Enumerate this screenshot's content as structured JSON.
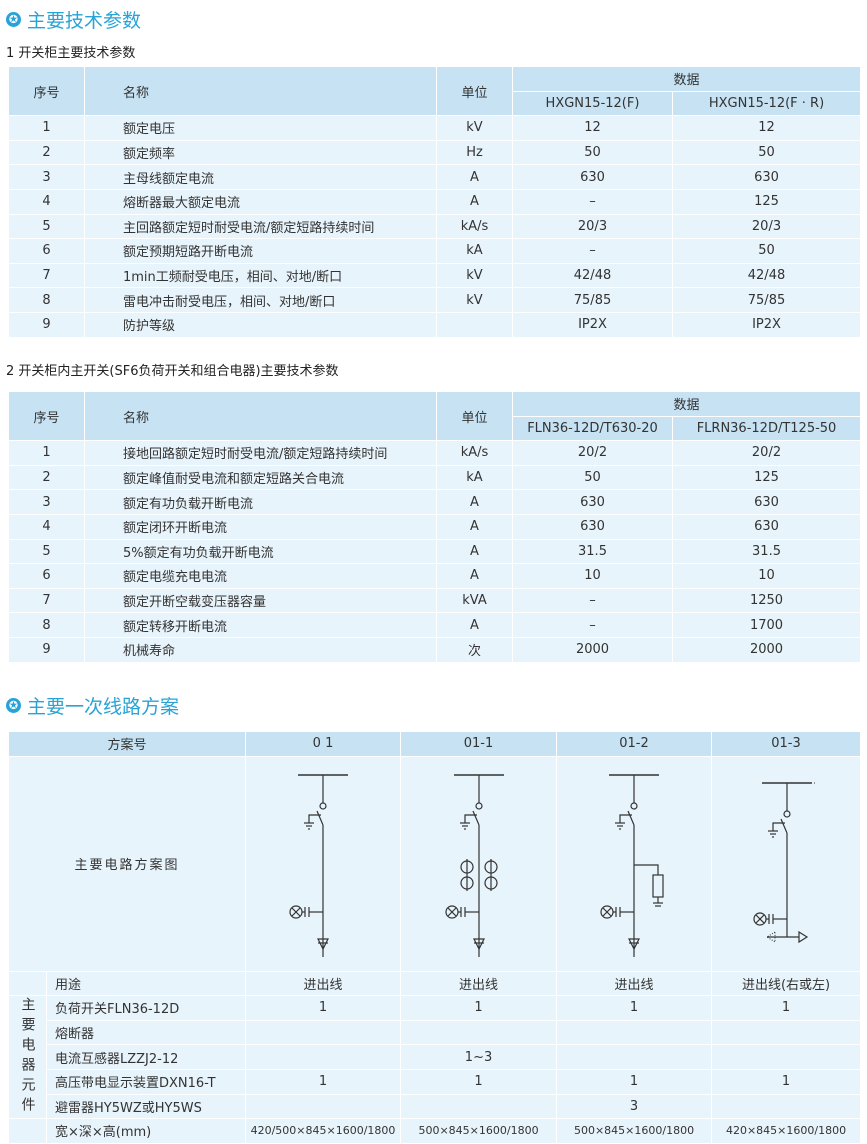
{
  "section1": {
    "title": "主要技术参数",
    "icon": "star-icon"
  },
  "table1": {
    "caption": "1 开关柜主要技术参数",
    "headers": {
      "no": "序号",
      "name": "名称",
      "unit": "单位",
      "data": "数据",
      "col1": "HXGN15-12(F)",
      "col2": "HXGN15-12(F · R)"
    },
    "rows": [
      [
        "1",
        "额定电压",
        "kV",
        "12",
        "12"
      ],
      [
        "2",
        "额定频率",
        "Hz",
        "50",
        "50"
      ],
      [
        "3",
        "主母线额定电流",
        "A",
        "630",
        "630"
      ],
      [
        "4",
        "熔断器最大额定电流",
        "A",
        "–",
        "125"
      ],
      [
        "5",
        "主回路额定短时耐受电流/额定短路持续时间",
        "kA/s",
        "20/3",
        "20/3"
      ],
      [
        "6",
        "额定预期短路开断电流",
        "kA",
        "–",
        "50"
      ],
      [
        "7",
        "1min工频耐受电压，相间、对地/断口",
        "kV",
        "42/48",
        "42/48"
      ],
      [
        "8",
        "雷电冲击耐受电压，相间、对地/断口",
        "kV",
        "75/85",
        "75/85"
      ],
      [
        "9",
        "防护等级",
        "",
        "IP2X",
        "IP2X"
      ]
    ]
  },
  "table2": {
    "caption": "2 开关柜内主开关(SF6负荷开关和组合电器)主要技术参数",
    "headers": {
      "no": "序号",
      "name": "名称",
      "unit": "单位",
      "data": "数据",
      "col1": "FLN36-12D/T630-20",
      "col2": "FLRN36-12D/T125-50"
    },
    "rows": [
      [
        "1",
        "接地回路额定短时耐受电流/额定短路持续时间",
        "kA/s",
        "20/2",
        "20/2"
      ],
      [
        "2",
        "额定峰值耐受电流和额定短路关合电流",
        "kA",
        "50",
        "125"
      ],
      [
        "3",
        "额定有功负载开断电流",
        "A",
        "630",
        "630"
      ],
      [
        "4",
        "额定闭环开断电流",
        "A",
        "630",
        "630"
      ],
      [
        "5",
        "5%额定有功负载开断电流",
        "A",
        "31.5",
        "31.5"
      ],
      [
        "6",
        "额定电缆充电电流",
        "A",
        "10",
        "10"
      ],
      [
        "7",
        "额定开断空载变压器容量",
        "kVA",
        "–",
        "1250"
      ],
      [
        "8",
        "额定转移开断电流",
        "A",
        "–",
        "1700"
      ],
      [
        "9",
        "机械寿命",
        "次",
        "2000",
        "2000"
      ]
    ]
  },
  "section2": {
    "title": "主要一次线路方案",
    "icon": "star-icon"
  },
  "table3": {
    "header_label": "方案号",
    "schemes": [
      "0 1",
      "01-1",
      "01-2",
      "01-3"
    ],
    "diagram_label": "主要电路方案图",
    "group_label": "主要电器元件",
    "rows": [
      [
        "用途",
        "进出线",
        "进出线",
        "进出线",
        "进出线(右或左)"
      ],
      [
        "负荷开关FLN36-12D",
        "1",
        "1",
        "1",
        "1"
      ],
      [
        "熔断器",
        "",
        "",
        "",
        ""
      ],
      [
        "电流互感器LZZJ2-12",
        "",
        "1~3",
        "",
        ""
      ],
      [
        "高压带电显示装置DXN16-T",
        "1",
        "1",
        "1",
        "1"
      ],
      [
        "避雷器HY5WZ或HY5WS",
        "",
        "",
        "3",
        ""
      ],
      [
        "宽×深×高(mm)",
        "420/500×845×1600/1800",
        "500×845×1600/1800",
        "500×845×1600/1800",
        "420×845×1600/1800"
      ]
    ]
  },
  "colors": {
    "accent": "#29a3d6",
    "header_bg": "#c6e2f3",
    "row_bg": "#e8f4fb"
  }
}
